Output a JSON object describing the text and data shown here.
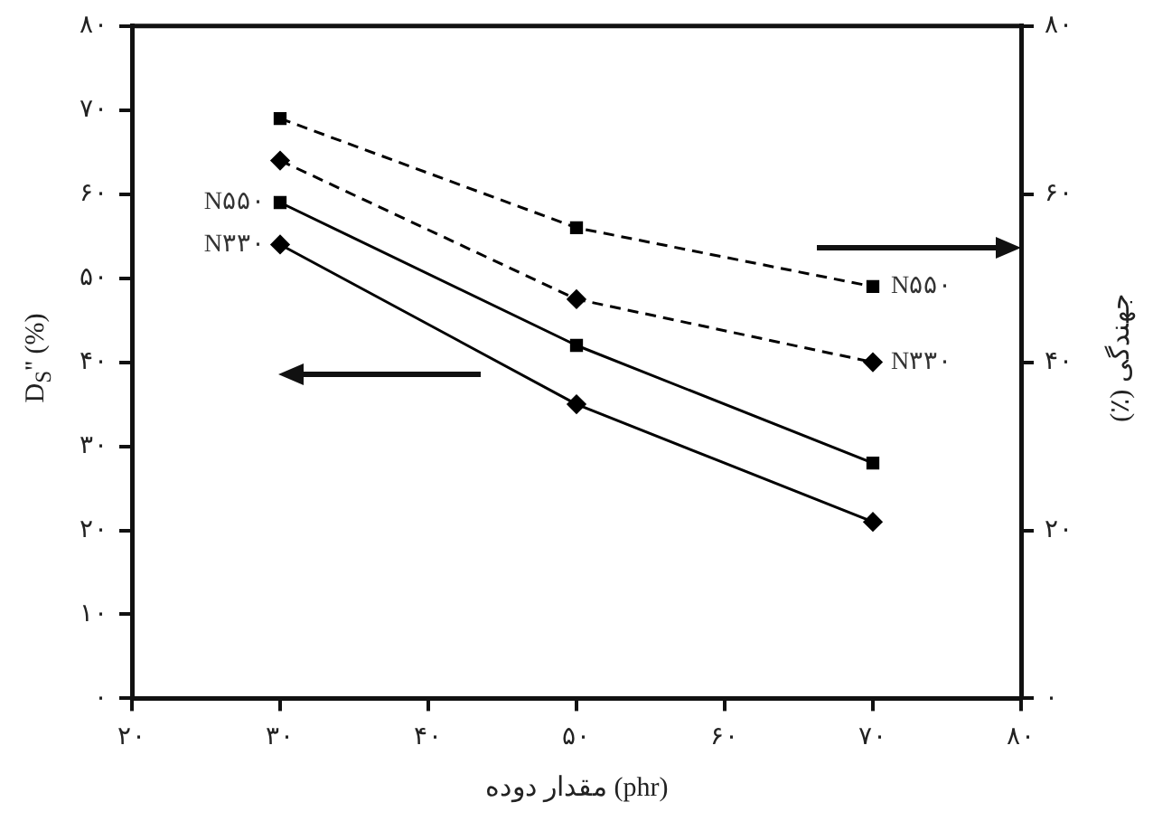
{
  "chart_data": {
    "type": "line",
    "xlabel": "مقدار دوده (phr)",
    "ylabel": "D$_{S}$'' (%)",
    "y2label": "جهندگی (٪)",
    "x": [
      30,
      50,
      70
    ],
    "series": [
      {
        "name": "N۵۵۰",
        "color": "#000000",
        "values": [
          59,
          42,
          28
        ],
        "axis": "y",
        "marker": "square",
        "line_style": "solid"
      },
      {
        "name": "N۳۳۰",
        "color": "#000000",
        "values": [
          54,
          35,
          21
        ],
        "axis": "y",
        "marker": "diamond",
        "line_style": "solid"
      },
      {
        "name": "N۵۵۰",
        "color": "#000000",
        "values": [
          69,
          56,
          49
        ],
        "axis": "y2",
        "marker": "square",
        "line_style": "dashed"
      },
      {
        "name": "N۳۳۰",
        "color": "#000000",
        "values": [
          64,
          47.5,
          40
        ],
        "axis": "y2",
        "marker": "diamond",
        "line_style": "dashed"
      }
    ],
    "xlim": [
      20,
      80
    ],
    "xticks": [
      {
        "value": 20,
        "label": "۲۰"
      },
      {
        "value": 30,
        "label": "۳۰"
      },
      {
        "value": 40,
        "label": "۴۰"
      },
      {
        "value": 50,
        "label": "۵۰"
      },
      {
        "value": 60,
        "label": "۶۰"
      },
      {
        "value": 70,
        "label": "۷۰"
      },
      {
        "value": 80,
        "label": "۸۰"
      }
    ],
    "ylim": [
      0,
      80
    ],
    "yticks": [
      {
        "value": 0,
        "label": "۰"
      },
      {
        "value": 10,
        "label": "۱۰"
      },
      {
        "value": 20,
        "label": "۲۰"
      },
      {
        "value": 30,
        "label": "۳۰"
      },
      {
        "value": 40,
        "label": "۴۰"
      },
      {
        "value": 50,
        "label": "۵۰"
      },
      {
        "value": 60,
        "label": "۶۰"
      },
      {
        "value": 70,
        "label": "۷۰"
      },
      {
        "value": 80,
        "label": "۸۰"
      }
    ],
    "y2lim": [
      0,
      80
    ],
    "y2ticks": [
      {
        "value": 0,
        "label": "۰"
      },
      {
        "value": 20,
        "label": "۲۰"
      },
      {
        "value": 40,
        "label": "۴۰"
      },
      {
        "value": 60,
        "label": "۶۰"
      },
      {
        "value": 80,
        "label": "۸۰"
      }
    ],
    "grid": false,
    "legend": false
  }
}
